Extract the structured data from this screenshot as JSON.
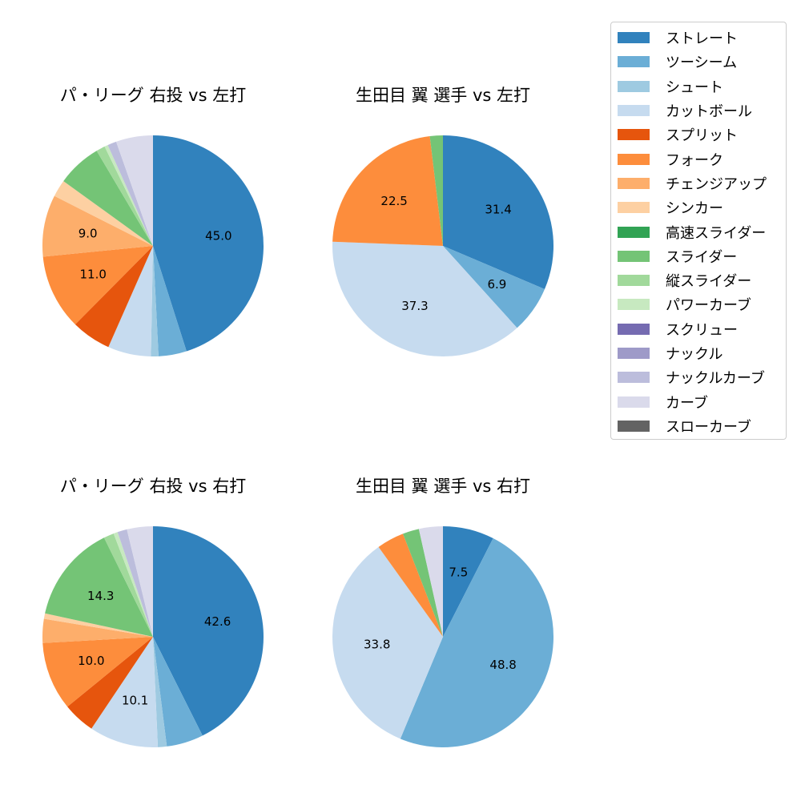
{
  "chart_data": [
    {
      "type": "pie",
      "title": "パ・リーグ 右投 vs 左打",
      "values": [
        45.0,
        4.1,
        1.1,
        6.3,
        5.8,
        11.0,
        9.0,
        2.5,
        0,
        6.5,
        1.3,
        0.5,
        0,
        0,
        1.3,
        5.4,
        0
      ],
      "labels": [
        "45.0",
        "",
        "",
        "",
        "",
        "11.0",
        "9.0",
        "",
        "",
        "",
        "",
        "",
        "",
        "",
        "",
        "",
        ""
      ]
    },
    {
      "type": "pie",
      "title": "生田目 翼 選手 vs 左打",
      "values": [
        31.4,
        6.9,
        0,
        37.3,
        0,
        22.5,
        0,
        0,
        0,
        1.9,
        0,
        0,
        0,
        0,
        0,
        0,
        0
      ],
      "labels": [
        "31.4",
        "6.9",
        "",
        "37.3",
        "",
        "22.5",
        "",
        "",
        "",
        "",
        "",
        "",
        "",
        "",
        "",
        "",
        ""
      ]
    },
    {
      "type": "pie",
      "title": "パ・リーグ 右投 vs 右打",
      "values": [
        42.6,
        5.4,
        1.3,
        10.1,
        4.7,
        10.0,
        3.5,
        0.8,
        0,
        14.3,
        1.5,
        0.6,
        0,
        0,
        1.4,
        3.8,
        0
      ],
      "labels": [
        "42.6",
        "",
        "",
        "10.1",
        "",
        "10.0",
        "",
        "",
        "",
        "14.3",
        "",
        "",
        "",
        "",
        "",
        "",
        ""
      ]
    },
    {
      "type": "pie",
      "title": "生田目 翼 選手 vs 右打",
      "values": [
        7.5,
        48.8,
        0,
        33.8,
        0,
        4.0,
        0,
        0,
        0,
        2.4,
        0,
        0,
        0,
        0,
        0,
        3.5,
        0
      ],
      "labels": [
        "7.5",
        "48.8",
        "",
        "33.8",
        "",
        "",
        "",
        "",
        "",
        "",
        "",
        "",
        "",
        "",
        "",
        "",
        ""
      ]
    }
  ],
  "legend": {
    "placement": "right",
    "items": [
      {
        "name": "ストレート",
        "color": "#3182bd"
      },
      {
        "name": "ツーシーム",
        "color": "#6baed6"
      },
      {
        "name": "シュート",
        "color": "#9ecae1"
      },
      {
        "name": "カットボール",
        "color": "#c6dbef"
      },
      {
        "name": "スプリット",
        "color": "#e6550d"
      },
      {
        "name": "フォーク",
        "color": "#fd8d3c"
      },
      {
        "name": "チェンジアップ",
        "color": "#fdae6b"
      },
      {
        "name": "シンカー",
        "color": "#fdd0a2"
      },
      {
        "name": "高速スライダー",
        "color": "#31a354"
      },
      {
        "name": "スライダー",
        "color": "#74c476"
      },
      {
        "name": "縦スライダー",
        "color": "#a1d99b"
      },
      {
        "name": "パワーカーブ",
        "color": "#c7e9c0"
      },
      {
        "name": "スクリュー",
        "color": "#756bb1"
      },
      {
        "name": "ナックル",
        "color": "#9e9ac8"
      },
      {
        "name": "ナックルカーブ",
        "color": "#bcbddc"
      },
      {
        "name": "カーブ",
        "color": "#dadaeb"
      },
      {
        "name": "スローカーブ",
        "color": "#636363"
      }
    ]
  }
}
